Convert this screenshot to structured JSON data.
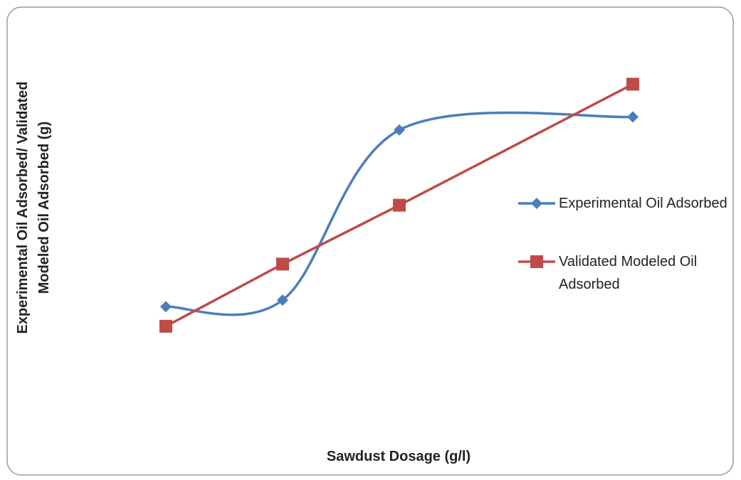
{
  "chart_data": {
    "type": "line",
    "x_label": "Sawdust Dosage (g/l)",
    "y_label": "Experimental Oil Adsorbed/ Validated Modeled  Oil Adsorbed (g)",
    "x": [
      1,
      2,
      3,
      5
    ],
    "xlim": [
      0,
      6
    ],
    "ylim": [
      0,
      100
    ],
    "series": [
      {
        "name": "Experimental Oil Adsorbed",
        "color": "#4a7ebb",
        "marker": "diamond",
        "smooth": true,
        "values": [
          28,
          30,
          82,
          86
        ]
      },
      {
        "name": "Validated Modeled Oil Adsorbed",
        "color": "#be4b48",
        "marker": "square",
        "smooth": false,
        "values": [
          22,
          41,
          59,
          96
        ]
      }
    ],
    "legend": "right"
  }
}
